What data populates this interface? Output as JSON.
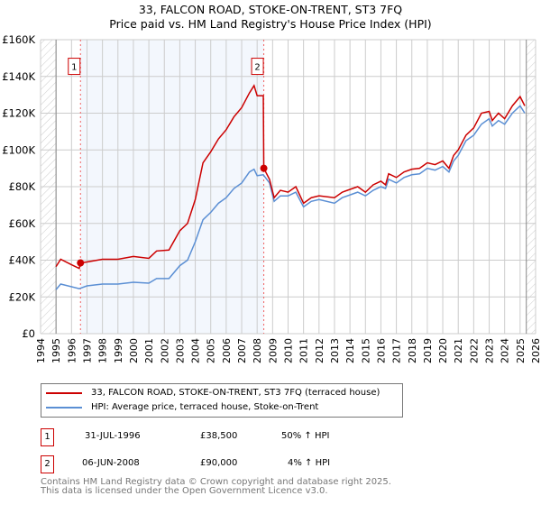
{
  "chart_data": {
    "type": "line",
    "title": "33, FALCON ROAD, STOKE-ON-TRENT, ST3 7FQ",
    "subtitle": "Price paid vs. HM Land Registry's House Price Index (HPI)",
    "xlim": [
      1994,
      2026
    ],
    "ylim": [
      0,
      160000
    ],
    "y_ticks": [
      {
        "v": 0,
        "l": "£0"
      },
      {
        "v": 20000,
        "l": "£20K"
      },
      {
        "v": 40000,
        "l": "£40K"
      },
      {
        "v": 60000,
        "l": "£60K"
      },
      {
        "v": 80000,
        "l": "£80K"
      },
      {
        "v": 100000,
        "l": "£100K"
      },
      {
        "v": 120000,
        "l": "£120K"
      },
      {
        "v": 140000,
        "l": "£140K"
      },
      {
        "v": 160000,
        "l": "£160K"
      }
    ],
    "x_ticks": [
      "1994",
      "1995",
      "1996",
      "1997",
      "1998",
      "1999",
      "2000",
      "2001",
      "2002",
      "2003",
      "2004",
      "2005",
      "2006",
      "2007",
      "2008",
      "2009",
      "2010",
      "2011",
      "2012",
      "2013",
      "2014",
      "2015",
      "2016",
      "2017",
      "2018",
      "2019",
      "2020",
      "2021",
      "2022",
      "2023",
      "2024",
      "2025",
      "2026"
    ],
    "grid": true,
    "series": [
      {
        "name": "33, FALCON ROAD, STOKE-ON-TRENT, ST3 7FQ (terraced house)",
        "color": "#cc0000",
        "points": [
          [
            1995,
            36.5
          ],
          [
            1995.3,
            40.5
          ],
          [
            1996,
            37.5
          ],
          [
            1996.5,
            35.5
          ],
          [
            1996.58,
            38.5
          ],
          [
            1997,
            39
          ],
          [
            1998,
            40.5
          ],
          [
            1999,
            40.5
          ],
          [
            2000,
            42
          ],
          [
            2001,
            41
          ],
          [
            2001.5,
            45
          ],
          [
            2002.3,
            45.5
          ],
          [
            2003,
            56
          ],
          [
            2003.5,
            60
          ],
          [
            2004,
            73
          ],
          [
            2004.5,
            93
          ],
          [
            2005,
            99
          ],
          [
            2005.5,
            106
          ],
          [
            2006,
            111
          ],
          [
            2006.5,
            118
          ],
          [
            2007,
            123
          ],
          [
            2007.5,
            131
          ],
          [
            2007.8,
            135
          ],
          [
            2008,
            129.5
          ],
          [
            2008.4,
            129.5
          ],
          [
            2008.43,
            90
          ],
          [
            2008.8,
            84
          ],
          [
            2009.1,
            74
          ],
          [
            2009.5,
            78
          ],
          [
            2010,
            77
          ],
          [
            2010.5,
            80
          ],
          [
            2011,
            71
          ],
          [
            2011.5,
            74
          ],
          [
            2012,
            75
          ],
          [
            2013,
            74
          ],
          [
            2013.5,
            77
          ],
          [
            2014.5,
            80
          ],
          [
            2015,
            77
          ],
          [
            2015.5,
            81
          ],
          [
            2016,
            83
          ],
          [
            2016.3,
            81
          ],
          [
            2016.5,
            87
          ],
          [
            2017,
            85
          ],
          [
            2017.5,
            88
          ],
          [
            2018,
            89.5
          ],
          [
            2018.5,
            90
          ],
          [
            2019,
            93
          ],
          [
            2019.5,
            92
          ],
          [
            2020,
            94
          ],
          [
            2020.4,
            90
          ],
          [
            2020.7,
            97
          ],
          [
            2021,
            100
          ],
          [
            2021.5,
            108
          ],
          [
            2022,
            112
          ],
          [
            2022.5,
            120
          ],
          [
            2023,
            121
          ],
          [
            2023.2,
            116
          ],
          [
            2023.6,
            120
          ],
          [
            2024,
            117
          ],
          [
            2024.5,
            124
          ],
          [
            2025,
            129
          ],
          [
            2025.3,
            124
          ]
        ]
      },
      {
        "name": "HPI: Average price, terraced house, Stoke-on-Trent",
        "color": "#5b8fd4",
        "points": [
          [
            1995,
            24
          ],
          [
            1995.3,
            27
          ],
          [
            1996.5,
            24.5
          ],
          [
            1997,
            26
          ],
          [
            1998,
            27
          ],
          [
            1999,
            27
          ],
          [
            2000,
            28
          ],
          [
            2001,
            27.5
          ],
          [
            2001.5,
            30
          ],
          [
            2002.3,
            30
          ],
          [
            2003,
            37
          ],
          [
            2003.5,
            40
          ],
          [
            2004,
            50
          ],
          [
            2004.5,
            62
          ],
          [
            2005,
            66
          ],
          [
            2005.5,
            71
          ],
          [
            2006,
            74
          ],
          [
            2006.5,
            79
          ],
          [
            2007,
            82
          ],
          [
            2007.5,
            88
          ],
          [
            2007.8,
            89.5
          ],
          [
            2008,
            86
          ],
          [
            2008.4,
            86.5
          ],
          [
            2008.8,
            82
          ],
          [
            2009.1,
            72
          ],
          [
            2009.5,
            75
          ],
          [
            2010,
            75
          ],
          [
            2010.5,
            77
          ],
          [
            2011,
            69
          ],
          [
            2011.5,
            72
          ],
          [
            2012,
            73
          ],
          [
            2013,
            71
          ],
          [
            2013.5,
            74
          ],
          [
            2014.5,
            77
          ],
          [
            2015,
            75
          ],
          [
            2015.5,
            78
          ],
          [
            2016,
            80
          ],
          [
            2016.3,
            79
          ],
          [
            2016.5,
            84
          ],
          [
            2017,
            82
          ],
          [
            2017.5,
            85
          ],
          [
            2018,
            86.5
          ],
          [
            2018.5,
            87
          ],
          [
            2019,
            90
          ],
          [
            2019.5,
            89
          ],
          [
            2020,
            91
          ],
          [
            2020.4,
            88
          ],
          [
            2020.7,
            94
          ],
          [
            2021,
            97
          ],
          [
            2021.5,
            105
          ],
          [
            2022,
            108
          ],
          [
            2022.5,
            114
          ],
          [
            2023,
            117
          ],
          [
            2023.2,
            113
          ],
          [
            2023.6,
            116
          ],
          [
            2024,
            114
          ],
          [
            2024.5,
            120
          ],
          [
            2025,
            124
          ],
          [
            2025.3,
            120
          ]
        ]
      }
    ],
    "y_units": "thousands GBP for points",
    "sales": [
      {
        "id": "1",
        "x": 1996.58,
        "y": 38.5
      },
      {
        "id": "2",
        "x": 2008.43,
        "y": 90
      }
    ],
    "data_range": [
      1995,
      2025.4
    ]
  },
  "legend": {
    "red": "33, FALCON ROAD, STOKE-ON-TRENT, ST3 7FQ (terraced house)",
    "blue": "HPI: Average price, terraced house, Stoke-on-Trent"
  },
  "transactions": [
    {
      "id": "1",
      "date": "31-JUL-1996",
      "price": "£38,500",
      "hpi": "50% ↑ HPI"
    },
    {
      "id": "2",
      "date": "06-JUN-2008",
      "price": "£90,000",
      "hpi": "4% ↑ HPI"
    }
  ],
  "footer": {
    "line1": "Contains HM Land Registry data © Crown copyright and database right 2025.",
    "line2": "This data is licensed under the Open Government Licence v3.0."
  }
}
